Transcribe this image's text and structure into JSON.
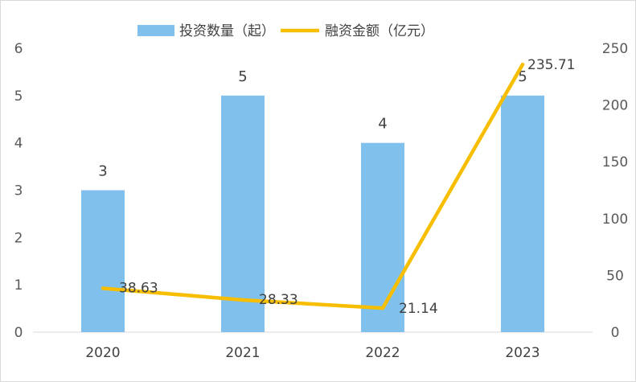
{
  "colors": {
    "bar": "#7fc1ec",
    "line": "#f7be00",
    "axis": "#d9d9d9",
    "text": "#404040"
  },
  "chart_data": {
    "type": "bar",
    "title": "",
    "categories": [
      "2020",
      "2021",
      "2022",
      "2023"
    ],
    "series": [
      {
        "name": "投资数量（起）",
        "type": "bar",
        "axis": "left",
        "values": [
          3,
          5,
          4,
          5
        ]
      },
      {
        "name": "融资金额（亿元）",
        "type": "line",
        "axis": "right",
        "values": [
          38.63,
          28.33,
          21.14,
          235.71
        ]
      }
    ],
    "bar_labels": [
      "3",
      "5",
      "4",
      "5"
    ],
    "line_labels": [
      "38.63",
      "28.33",
      "21.14",
      "235.71"
    ],
    "y_left": {
      "min": 0,
      "max": 6,
      "ticks": [
        "0",
        "1",
        "2",
        "3",
        "4",
        "5",
        "6"
      ]
    },
    "y_right": {
      "min": 0,
      "max": 250,
      "ticks": [
        "0",
        "50",
        "100",
        "150",
        "200",
        "250"
      ]
    },
    "grid": false,
    "legend_position": "top-center"
  }
}
